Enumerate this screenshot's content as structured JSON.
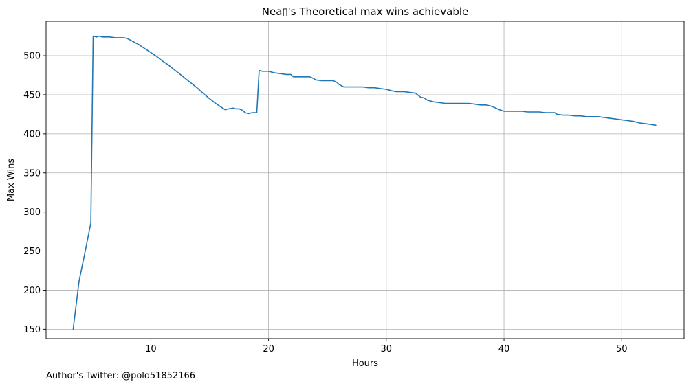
{
  "chart_data": {
    "type": "line",
    "title": "Nea▯'s Theoretical max wins achievable",
    "xlabel": "Hours",
    "ylabel": "Max Wins",
    "xlim": [
      1.1,
      55.3
    ],
    "ylim": [
      138,
      544
    ],
    "xticks": [
      10,
      20,
      30,
      40,
      50
    ],
    "yticks": [
      150,
      200,
      250,
      300,
      350,
      400,
      450,
      500
    ],
    "grid": true,
    "series_color": "#1f77b4",
    "series": [
      {
        "x": [
          3.4,
          3.9,
          4.4,
          4.9,
          5.1,
          5.4,
          5.6,
          5.9,
          6.5,
          7.0,
          7.5,
          7.7,
          8.0,
          8.5,
          9.0,
          9.3,
          9.7,
          10.0,
          10.5,
          11.0,
          11.5,
          12.0,
          12.5,
          13.0,
          13.5,
          14.0,
          14.5,
          15.0,
          15.5,
          16.0,
          16.3,
          16.6,
          17.0,
          17.2,
          17.5,
          17.8,
          18.0,
          18.3,
          18.6,
          19.0,
          19.2,
          19.5,
          20.0,
          20.5,
          21.0,
          21.5,
          21.9,
          22.1,
          22.5,
          23.0,
          23.5,
          23.8,
          24.0,
          24.5,
          25.0,
          25.5,
          25.8,
          26.0,
          26.4,
          26.7,
          27.0,
          27.5,
          28.0,
          28.5,
          29.0,
          29.5,
          30.0,
          30.5,
          30.8,
          31.0,
          31.5,
          32.0,
          32.5,
          32.9,
          33.2,
          33.5,
          34.0,
          34.5,
          35.0,
          35.5,
          36.0,
          36.5,
          37.0,
          37.5,
          38.0,
          38.5,
          39.0,
          39.3,
          39.6,
          40.0,
          40.5,
          41.0,
          41.5,
          42.0,
          42.5,
          43.0,
          43.5,
          44.0,
          44.3,
          44.5,
          45.0,
          45.5,
          46.0,
          46.5,
          47.0,
          47.5,
          48.0,
          48.5,
          49.0,
          49.5,
          50.0,
          50.5,
          51.0,
          51.5,
          52.0,
          52.5,
          52.9
        ],
        "y": [
          150,
          211,
          248,
          286,
          525,
          524,
          525,
          524,
          524,
          523,
          523,
          523,
          522,
          518,
          514,
          511,
          507,
          504,
          499,
          493,
          488,
          482,
          476,
          470,
          464,
          458,
          451,
          445,
          439,
          434,
          431,
          432,
          433,
          432,
          432,
          430,
          427,
          426,
          427,
          427,
          481,
          480,
          480,
          478,
          477,
          476,
          476,
          473,
          473,
          473,
          473,
          471,
          469,
          468,
          468,
          468,
          466,
          463,
          460,
          460,
          460,
          460,
          460,
          459,
          459,
          458,
          457,
          455,
          454,
          454,
          454,
          453,
          452,
          447,
          446,
          443,
          441,
          440,
          439,
          439,
          439,
          439,
          439,
          438,
          437,
          437,
          435,
          433,
          431,
          429,
          429,
          429,
          429,
          428,
          428,
          428,
          427,
          427,
          427,
          425,
          424,
          424,
          423,
          423,
          422,
          422,
          422,
          421,
          420,
          419,
          418,
          417,
          416,
          414,
          413,
          412,
          411
        ]
      }
    ]
  },
  "footer": {
    "author_text": "Author's Twitter: @polo51852166"
  }
}
